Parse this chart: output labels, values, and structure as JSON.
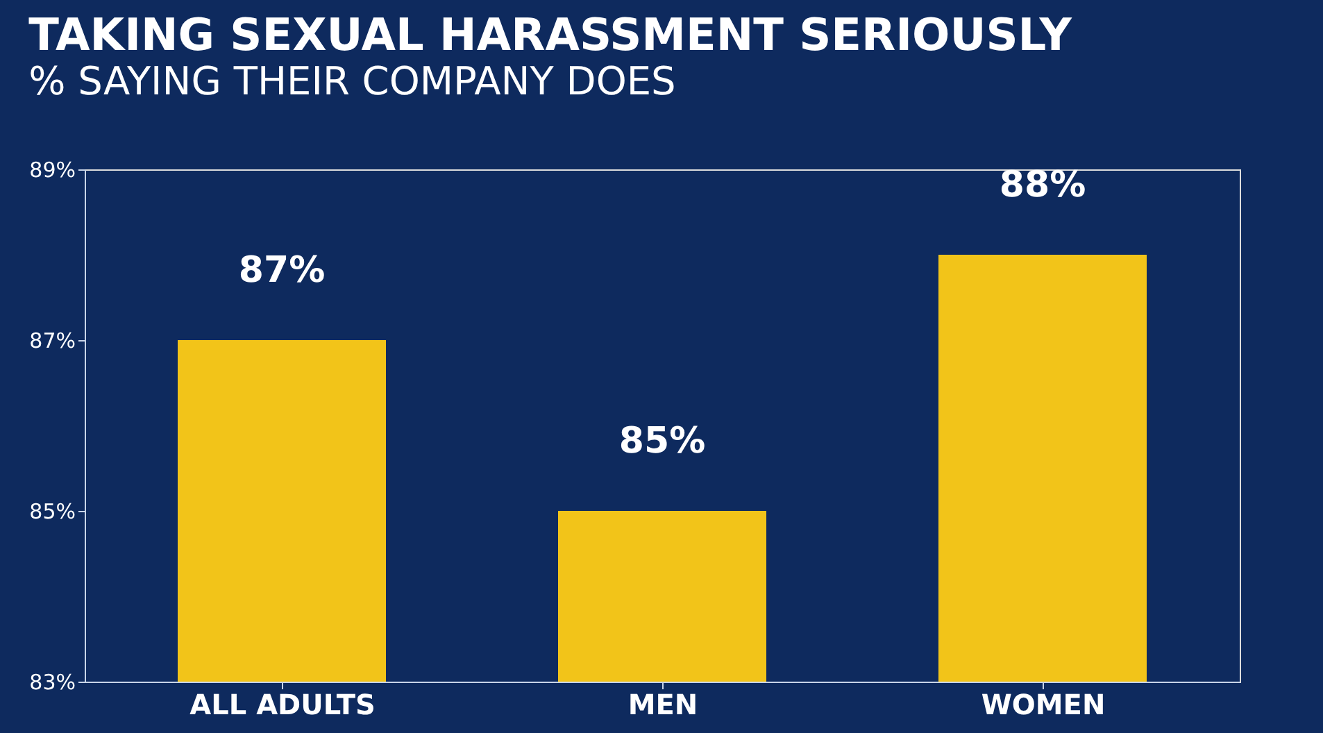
{
  "chart_data": {
    "type": "bar",
    "title": "TAKING SEXUAL HARASSMENT SERIOUSLY",
    "subtitle": "% SAYING THEIR COMPANY DOES",
    "categories": [
      "ALL ADULTS",
      "MEN",
      "WOMEN"
    ],
    "values": [
      87,
      85,
      88
    ],
    "value_labels": [
      "87%",
      "85%",
      "88%"
    ],
    "color": "#f2c419",
    "ylim": [
      83,
      89
    ],
    "yticks": [
      {
        "value": 83,
        "label": "83%"
      },
      {
        "value": 85,
        "label": "85%"
      },
      {
        "value": 87,
        "label": "87%"
      },
      {
        "value": 89,
        "label": "89%"
      }
    ],
    "grid": false
  }
}
